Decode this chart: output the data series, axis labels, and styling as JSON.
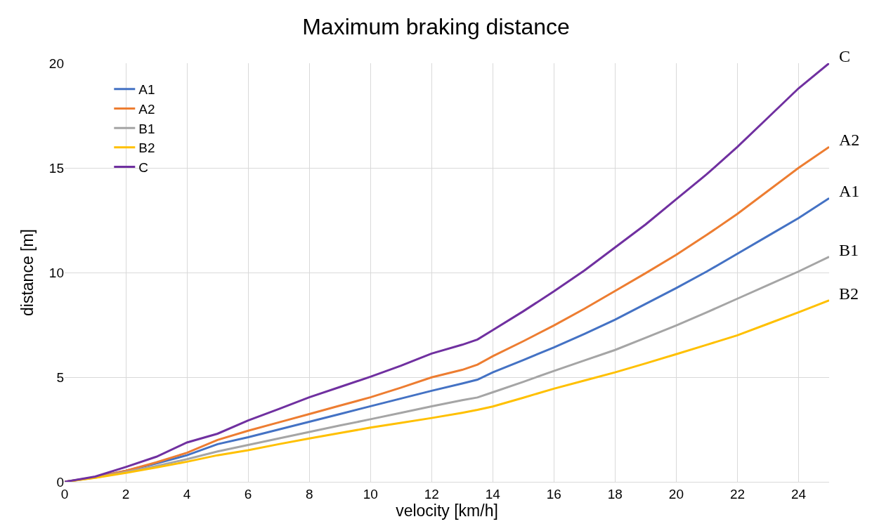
{
  "chart_data": {
    "type": "line",
    "title": "Maximum braking distance",
    "xlabel": "velocity [km/h]",
    "ylabel": "distance [m]",
    "x": [
      0,
      1,
      2,
      3,
      4,
      5,
      6,
      7,
      8,
      9,
      10,
      11,
      12,
      13,
      13.5,
      14,
      15,
      16,
      17,
      18,
      19,
      20,
      21,
      22,
      23,
      24,
      25
    ],
    "series": [
      {
        "name": "A1",
        "color": "#4472c4",
        "values": [
          0,
          0.22,
          0.53,
          0.88,
          1.27,
          1.8,
          2.13,
          2.5,
          2.87,
          3.24,
          3.61,
          3.98,
          4.35,
          4.7,
          4.88,
          5.23,
          5.82,
          6.42,
          7.07,
          7.75,
          8.5,
          9.26,
          10.05,
          10.9,
          11.75,
          12.6,
          13.55
        ]
      },
      {
        "name": "A2",
        "color": "#ed7d31",
        "values": [
          0,
          0.22,
          0.53,
          0.93,
          1.39,
          2.0,
          2.44,
          2.84,
          3.24,
          3.64,
          4.04,
          4.5,
          4.99,
          5.35,
          5.6,
          6.0,
          6.72,
          7.47,
          8.27,
          9.12,
          9.97,
          10.85,
          11.8,
          12.8,
          13.9,
          15.0,
          16.0
        ]
      },
      {
        "name": "B1",
        "color": "#a5a5a5",
        "values": [
          0,
          0.2,
          0.47,
          0.76,
          1.08,
          1.45,
          1.76,
          2.07,
          2.38,
          2.69,
          2.99,
          3.3,
          3.61,
          3.9,
          4.03,
          4.28,
          4.78,
          5.3,
          5.8,
          6.3,
          6.88,
          7.47,
          8.1,
          8.75,
          9.4,
          10.05,
          10.75
        ]
      },
      {
        "name": "B2",
        "color": "#ffc000",
        "values": [
          0,
          0.19,
          0.43,
          0.69,
          0.96,
          1.27,
          1.51,
          1.8,
          2.07,
          2.33,
          2.59,
          2.82,
          3.05,
          3.3,
          3.44,
          3.6,
          4.02,
          4.45,
          4.84,
          5.23,
          5.66,
          6.1,
          6.55,
          7.0,
          7.55,
          8.1,
          8.67
        ]
      },
      {
        "name": "C",
        "color": "#7030a0",
        "values": [
          0,
          0.25,
          0.71,
          1.2,
          1.88,
          2.3,
          2.93,
          3.48,
          4.04,
          4.53,
          5.02,
          5.55,
          6.13,
          6.55,
          6.8,
          7.25,
          8.15,
          9.1,
          10.1,
          11.2,
          12.3,
          13.5,
          14.7,
          16.0,
          17.4,
          18.8,
          20.0
        ]
      }
    ],
    "xlim": [
      0,
      25
    ],
    "xticks": [
      0,
      2,
      4,
      6,
      8,
      10,
      12,
      14,
      16,
      18,
      20,
      22,
      24
    ],
    "ylim": [
      0,
      20
    ],
    "yticks": [
      0,
      5,
      10,
      15,
      20
    ],
    "grid": true,
    "legend": "top left",
    "marker": "none",
    "line_style": "solid"
  }
}
